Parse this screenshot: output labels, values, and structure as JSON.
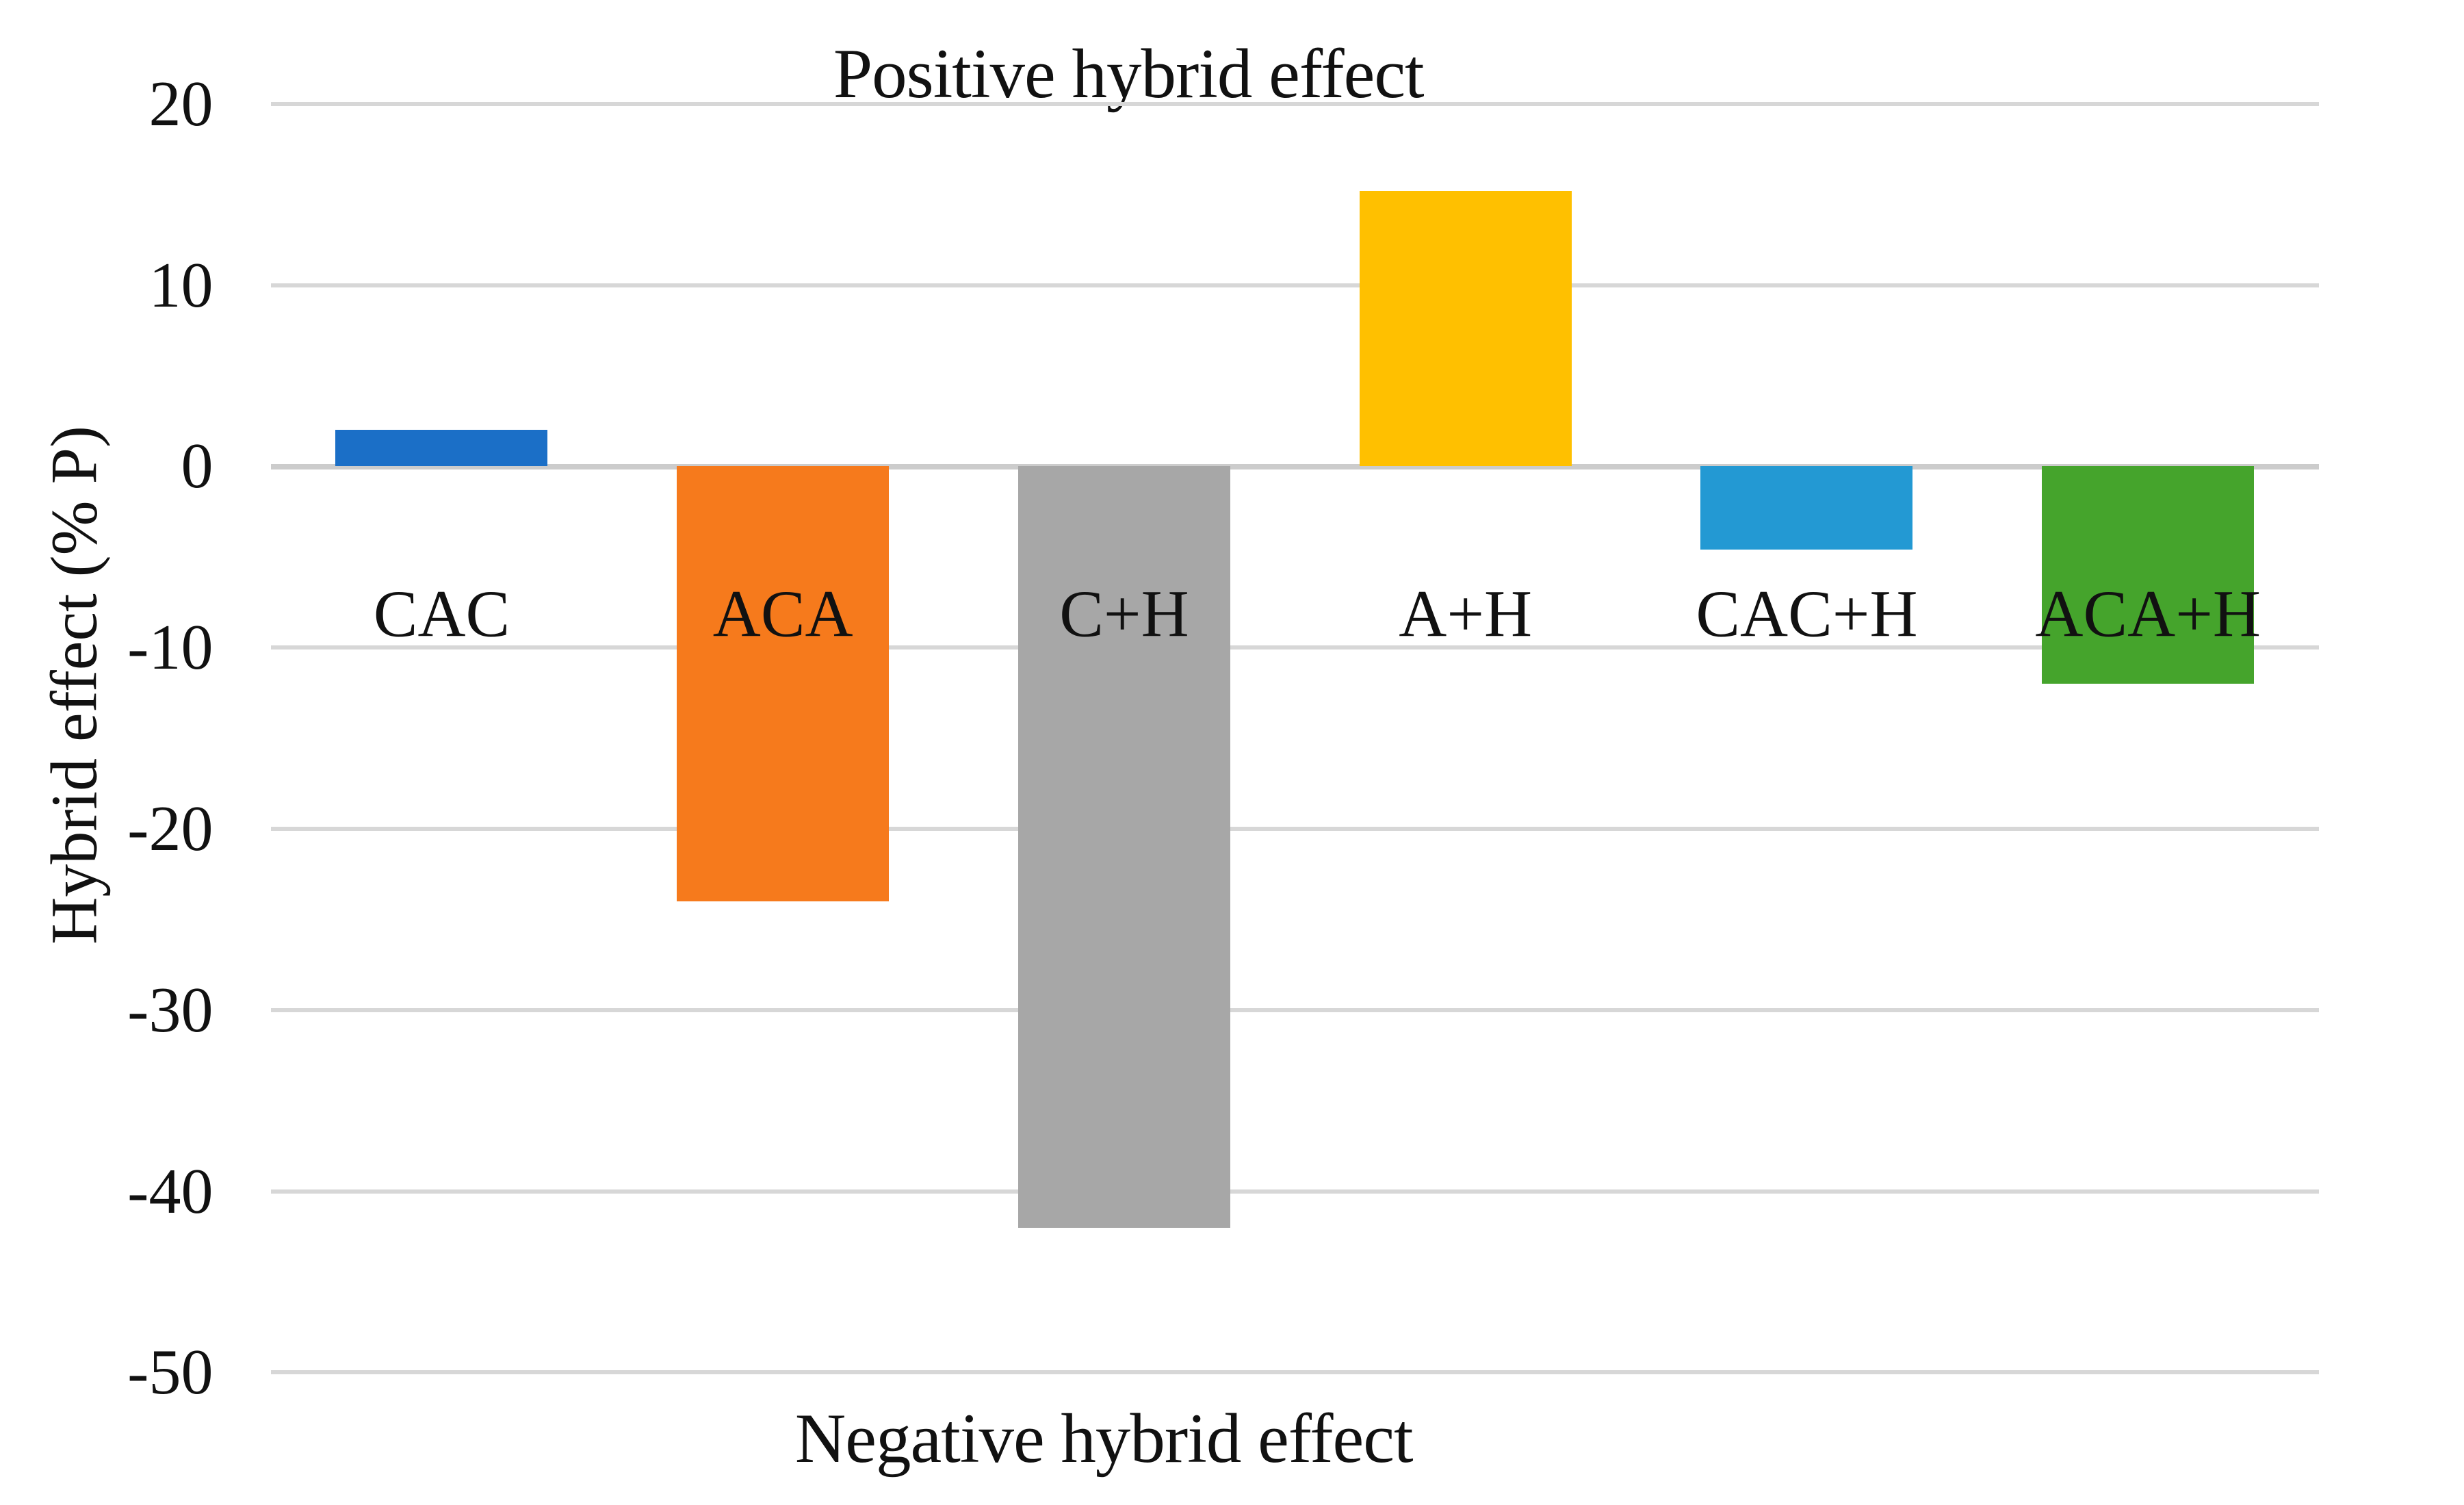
{
  "chart_data": {
    "type": "bar",
    "title": "Positive hybrid effect",
    "bottom_label": "Negative hybrid effect",
    "ylabel": "Hybrid effect (% P)",
    "categories": [
      "CAC",
      "ACA",
      "C+H",
      "A+H",
      "CAC+H",
      "ACA+H"
    ],
    "values": [
      2,
      -24,
      -42,
      15.2,
      -4.6,
      -12
    ],
    "bar_colors": [
      "#1b6fc7",
      "#f67a1c",
      "#a7a7a7",
      "#ffc000",
      "#2399d3",
      "#45a42c"
    ],
    "yticks": [
      20,
      10,
      0,
      -10,
      -20,
      -30,
      -40,
      -50
    ],
    "ylim": [
      -50,
      20
    ],
    "grid": "horizontal-only",
    "gridline_color": "#d7d7d7",
    "legend": "none",
    "background_color": "#ffffff",
    "text_color": "#111111"
  }
}
